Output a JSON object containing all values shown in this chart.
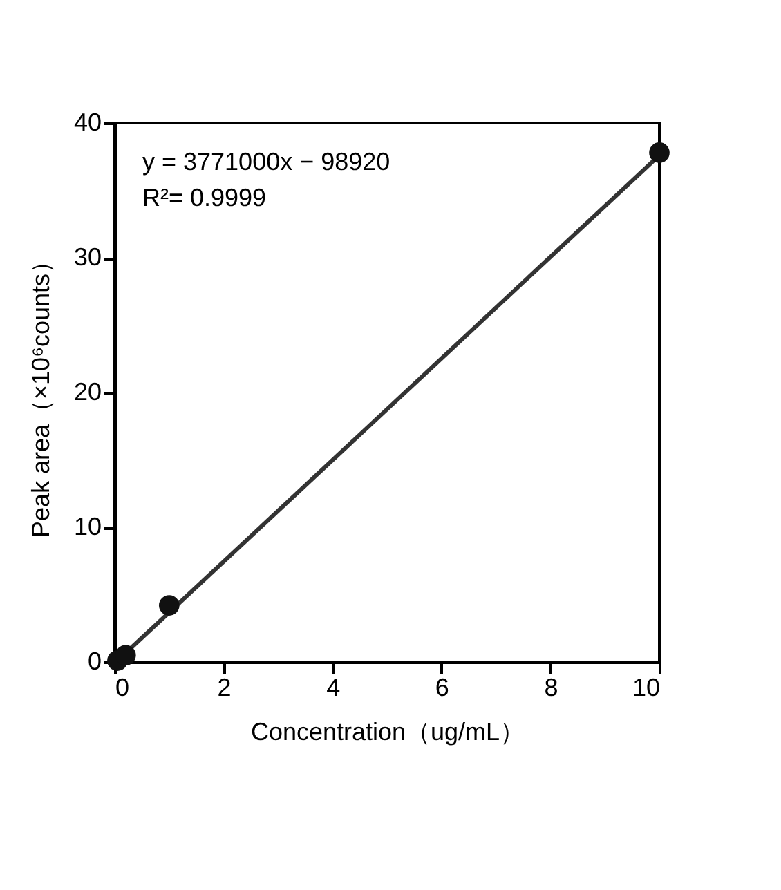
{
  "chart_data": {
    "type": "scatter",
    "xlabel": "Concentration（ug/mL）",
    "ylabel": "Peak area（×10⁶counts）",
    "xlim": [
      0,
      10
    ],
    "ylim": [
      0,
      40
    ],
    "xticks": [
      0,
      2,
      4,
      6,
      8,
      10
    ],
    "yticks": [
      0,
      10,
      20,
      30,
      40
    ],
    "grid": false,
    "marker": "circle",
    "series": [
      {
        "type": "line",
        "color": "#333333",
        "x": [
          0.05,
          10
        ],
        "values": [
          0.1,
          37.6
        ],
        "line_style": "solid",
        "marker": "none"
      },
      {
        "color": "#111111",
        "x": [
          0.05,
          0.2,
          1,
          10
        ],
        "values": [
          0.1,
          0.5,
          4.2,
          37.8
        ]
      }
    ],
    "annotations": [
      "y = 3771000x − 98920",
      "R²= 0.9999"
    ]
  }
}
